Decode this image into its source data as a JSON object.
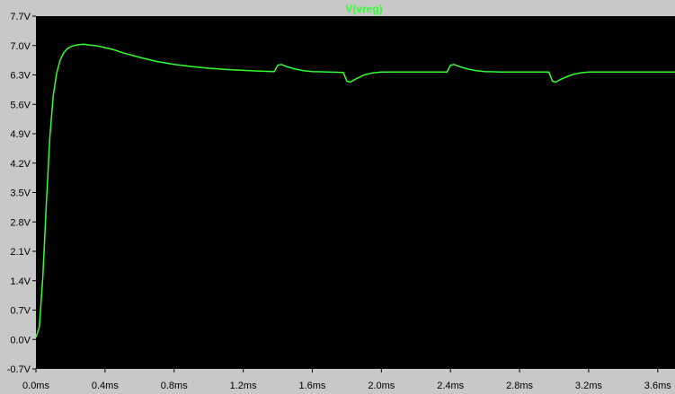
{
  "chart_data": {
    "type": "line",
    "title": "V(vreg)",
    "xlabel": "",
    "ylabel": "",
    "x_unit": "ms",
    "y_unit": "V",
    "xlim": [
      0.0,
      3.7
    ],
    "ylim": [
      -0.7,
      7.7
    ],
    "x_ticks": [
      "0.0ms",
      "0.4ms",
      "0.8ms",
      "1.2ms",
      "1.6ms",
      "2.0ms",
      "2.4ms",
      "2.8ms",
      "3.2ms",
      "3.6ms"
    ],
    "y_ticks": [
      "7.7V",
      "7.0V",
      "6.3V",
      "5.6V",
      "4.9V",
      "4.2V",
      "3.5V",
      "2.8V",
      "2.1V",
      "1.4V",
      "0.7V",
      "0.0V",
      "-0.7V"
    ],
    "x_tick_values": [
      0.0,
      0.4,
      0.8,
      1.2,
      1.6,
      2.0,
      2.4,
      2.8,
      3.2,
      3.6
    ],
    "y_tick_values": [
      7.7,
      7.0,
      6.3,
      5.6,
      4.9,
      4.2,
      3.5,
      2.8,
      2.1,
      1.4,
      0.7,
      0.0,
      -0.7
    ],
    "grid": false,
    "background_color": "#000000",
    "frame_color": "#c8c8c8",
    "trace_color": "#33ff33",
    "series": [
      {
        "name": "V(vreg)",
        "x": [
          0.0,
          0.02,
          0.04,
          0.06,
          0.08,
          0.1,
          0.12,
          0.14,
          0.16,
          0.18,
          0.2,
          0.22,
          0.25,
          0.28,
          0.31,
          0.34,
          0.37,
          0.4,
          0.45,
          0.5,
          0.6,
          0.7,
          0.8,
          0.9,
          1.0,
          1.1,
          1.2,
          1.3,
          1.38,
          1.4,
          1.42,
          1.45,
          1.5,
          1.55,
          1.6,
          1.7,
          1.78,
          1.8,
          1.82,
          1.85,
          1.9,
          1.95,
          2.0,
          2.1,
          2.2,
          2.3,
          2.38,
          2.4,
          2.42,
          2.45,
          2.5,
          2.55,
          2.6,
          2.7,
          2.8,
          2.9,
          2.97,
          2.99,
          3.01,
          3.04,
          3.1,
          3.15,
          3.2,
          3.3,
          3.4,
          3.5,
          3.6,
          3.7
        ],
        "y": [
          0.05,
          0.3,
          1.5,
          3.2,
          4.8,
          5.8,
          6.35,
          6.65,
          6.82,
          6.92,
          6.97,
          7.0,
          7.02,
          7.03,
          7.01,
          7.0,
          6.98,
          6.95,
          6.9,
          6.83,
          6.72,
          6.62,
          6.55,
          6.5,
          6.46,
          6.43,
          6.41,
          6.39,
          6.38,
          6.53,
          6.55,
          6.5,
          6.44,
          6.4,
          6.38,
          6.37,
          6.36,
          6.15,
          6.13,
          6.2,
          6.3,
          6.35,
          6.37,
          6.37,
          6.37,
          6.37,
          6.37,
          6.53,
          6.55,
          6.5,
          6.44,
          6.4,
          6.38,
          6.37,
          6.37,
          6.37,
          6.37,
          6.15,
          6.13,
          6.2,
          6.3,
          6.35,
          6.37,
          6.37,
          6.37,
          6.37,
          6.37,
          6.37
        ]
      }
    ]
  }
}
